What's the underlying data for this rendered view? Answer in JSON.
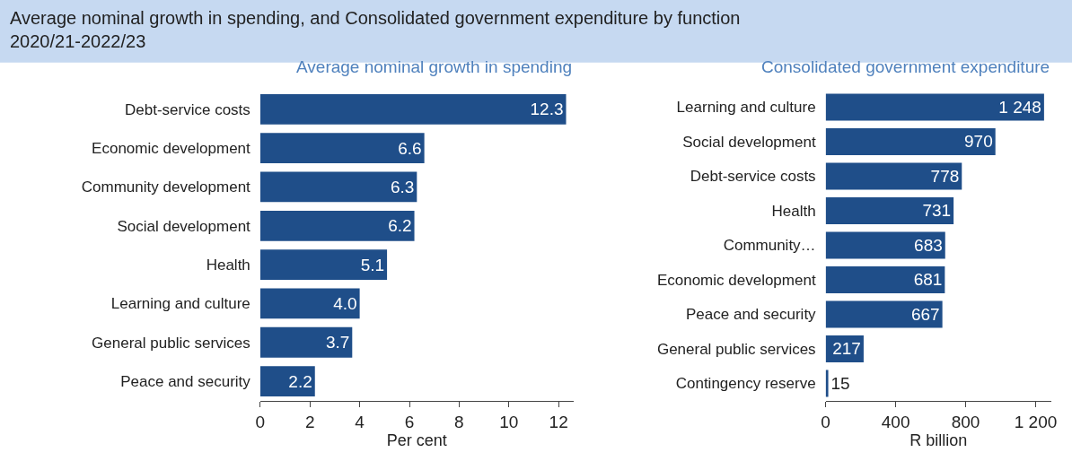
{
  "chart_data": [
    {
      "type": "bar",
      "orientation": "horizontal",
      "title": "Average nominal growth in spending, and Consolidated government expenditure by function\n2020/21-2022/23",
      "subtitle": "Average nominal growth in spending",
      "categories": [
        "Debt-service costs",
        "Economic development",
        "Community development",
        "Social development",
        "Health",
        "Learning and culture",
        "General public services",
        "Peace and security"
      ],
      "values": [
        12.3,
        6.6,
        6.3,
        6.2,
        5.1,
        4.0,
        3.7,
        2.2
      ],
      "value_labels": [
        "12.3",
        "6.6",
        "6.3",
        "6.2",
        "5.1",
        "4.0",
        "3.7",
        "2.2"
      ],
      "color": "#1f4e89",
      "xlim": [
        0,
        12.6
      ],
      "xticks": [
        0,
        2,
        4,
        6,
        8,
        10,
        12
      ],
      "xlabel": "Per cent"
    },
    {
      "type": "bar",
      "orientation": "horizontal",
      "subtitle": "Consolidated government expenditure",
      "categories": [
        "Learning and culture",
        "Social development",
        "Debt-service costs",
        "Health",
        "Community…",
        "Economic development",
        "Peace and security",
        "General public services",
        "Contingency reserve"
      ],
      "values": [
        1248,
        970,
        778,
        731,
        683,
        681,
        667,
        217,
        15
      ],
      "value_labels": [
        "1 248",
        "970",
        "778",
        "731",
        "683",
        "681",
        "667",
        "217",
        "15"
      ],
      "color": "#1f4e89",
      "xlim": [
        0,
        1290
      ],
      "xticks": [
        0,
        400,
        800,
        {
          "value": 1200,
          "label": "1 200"
        }
      ],
      "xlabel": "R billion"
    }
  ]
}
